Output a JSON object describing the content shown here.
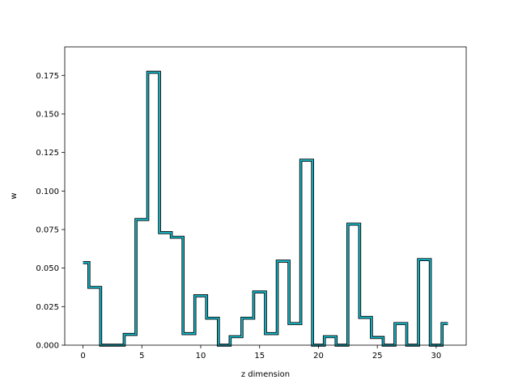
{
  "chart_data": {
    "type": "line",
    "style": "step",
    "xlabel": "z dimension",
    "ylabel": "w",
    "xlim": [
      -1.55,
      32.55
    ],
    "ylim": [
      0,
      0.1935
    ],
    "xticks": [
      0,
      5,
      10,
      15,
      20,
      25,
      30
    ],
    "xtick_labels": [
      "0",
      "5",
      "10",
      "15",
      "20",
      "25",
      "30"
    ],
    "yticks": [
      0,
      0.025,
      0.05,
      0.075,
      0.1,
      0.125,
      0.15,
      0.175
    ],
    "ytick_labels": [
      "0.000",
      "0.025",
      "0.050",
      "0.075",
      "0.100",
      "0.125",
      "0.150",
      "0.175"
    ],
    "grid": false,
    "line_color": "#17becf",
    "outline_color": "#000000",
    "x": [
      0,
      1,
      2,
      3,
      4,
      5,
      6,
      7,
      8,
      9,
      10,
      11,
      12,
      13,
      14,
      15,
      16,
      17,
      18,
      19,
      20,
      21,
      22,
      23,
      24,
      25,
      26,
      27,
      28,
      29,
      30,
      31
    ],
    "y": [
      0.0535,
      0.0375,
      0.0,
      0.0,
      0.007,
      0.0815,
      0.177,
      0.073,
      0.07,
      0.0075,
      0.032,
      0.0175,
      0.0,
      0.0055,
      0.0175,
      0.0345,
      0.0075,
      0.0545,
      0.014,
      0.12,
      0.0,
      0.0055,
      0.0,
      0.0785,
      0.018,
      0.005,
      0.0,
      0.014,
      0.0,
      0.0555,
      0.0,
      0.014
    ]
  }
}
